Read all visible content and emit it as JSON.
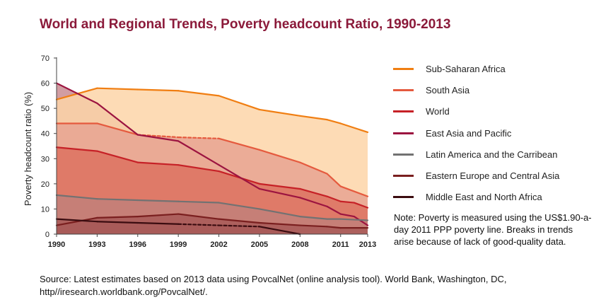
{
  "title": "World and Regional Trends, Poverty headcount Ratio, 1990-2013",
  "note": "Note: Poverty is measured using the US$1.90-a-day 2011 PPP poverty line. Breaks in trends arise because of lack of good-quality data.",
  "source": "Source: Latest estimates based on 2013 data using PovcalNet (online analysis tool). World Bank, Washington, DC, http//iresearch.worldbank.org/PovcalNet/.",
  "chart_data": {
    "type": "area",
    "ylabel": "Poverty headcount ratio (%)",
    "xlabel": "",
    "ylim": [
      0,
      70
    ],
    "yticks": [
      0,
      10,
      20,
      30,
      40,
      50,
      60,
      70
    ],
    "xlim": [
      1990,
      2013
    ],
    "xticks": [
      1990,
      1993,
      1996,
      1999,
      2002,
      2005,
      2008,
      2011,
      2013
    ],
    "grid": false,
    "legend_position": "right",
    "series": [
      {
        "name": "Sub-Saharan Africa",
        "line_color": "#f07e12",
        "fill_color": "#fdd5a8",
        "points": [
          [
            1990,
            53.5
          ],
          [
            1993,
            58
          ],
          [
            1996,
            57.5
          ],
          [
            1999,
            57
          ],
          [
            2002,
            55
          ],
          [
            2005,
            49.5
          ],
          [
            2008,
            47
          ],
          [
            2010,
            45.5
          ],
          [
            2011,
            44
          ],
          [
            2013,
            40.5
          ]
        ],
        "dashed_segments": []
      },
      {
        "name": "South Asia",
        "line_color": "#e55a3e",
        "fill_color": "#e8a392",
        "points": [
          [
            1990,
            44
          ],
          [
            1993,
            44
          ],
          [
            1996,
            39.5
          ],
          [
            1999,
            38.5
          ],
          [
            2002,
            38
          ],
          [
            2005,
            33.5
          ],
          [
            2008,
            28.5
          ],
          [
            2010,
            24
          ],
          [
            2011,
            19
          ],
          [
            2013,
            15
          ]
        ],
        "dashed_segments": [
          [
            1996,
            2002
          ]
        ]
      },
      {
        "name": "World",
        "line_color": "#c62127",
        "fill_color": "#dd7260",
        "points": [
          [
            1990,
            34.5
          ],
          [
            1993,
            33
          ],
          [
            1996,
            28.5
          ],
          [
            1999,
            27.5
          ],
          [
            2002,
            25
          ],
          [
            2005,
            20
          ],
          [
            2008,
            18
          ],
          [
            2010,
            15
          ],
          [
            2011,
            13
          ],
          [
            2012,
            12.5
          ],
          [
            2013,
            10.5
          ]
        ],
        "dashed_segments": []
      },
      {
        "name": "East Asia and Pacific",
        "line_color": "#9c1440",
        "fill_color": "#c98c92",
        "points": [
          [
            1990,
            60
          ],
          [
            1993,
            52
          ],
          [
            1996,
            39.5
          ],
          [
            1999,
            37
          ],
          [
            2002,
            27.5
          ],
          [
            2005,
            18
          ],
          [
            2008,
            14.5
          ],
          [
            2010,
            11
          ],
          [
            2011,
            8
          ],
          [
            2012,
            7
          ],
          [
            2013,
            3.5
          ]
        ],
        "dashed_segments": []
      },
      {
        "name": "Latin America and the Carribean",
        "line_color": "#727272",
        "fill_color": "#c2807a",
        "points": [
          [
            1990,
            15.5
          ],
          [
            1993,
            14
          ],
          [
            1996,
            13.5
          ],
          [
            1999,
            13
          ],
          [
            2002,
            12.5
          ],
          [
            2005,
            10
          ],
          [
            2008,
            7
          ],
          [
            2010,
            6
          ],
          [
            2011,
            6
          ],
          [
            2013,
            5.5
          ]
        ],
        "dashed_segments": []
      },
      {
        "name": "Eastern Europe and Central Asia",
        "line_color": "#7a1f1f",
        "fill_color": "#a85a58",
        "points": [
          [
            1990,
            3.5
          ],
          [
            1993,
            6.5
          ],
          [
            1996,
            7
          ],
          [
            1999,
            8
          ],
          [
            2002,
            6
          ],
          [
            2005,
            4.5
          ],
          [
            2008,
            3.5
          ],
          [
            2010,
            3
          ],
          [
            2011,
            2.5
          ],
          [
            2013,
            2.5
          ]
        ],
        "dashed_segments": []
      },
      {
        "name": "Middle East and North Africa",
        "line_color": "#3b0c10",
        "fill_color": "#a85a58",
        "points": [
          [
            1990,
            6
          ],
          [
            1993,
            5
          ],
          [
            1996,
            4.5
          ],
          [
            1999,
            4
          ],
          [
            2002,
            3.5
          ],
          [
            2005,
            3
          ],
          [
            2008,
            0
          ]
        ],
        "dashed_segments": [
          [
            1999,
            2005
          ]
        ]
      }
    ]
  }
}
